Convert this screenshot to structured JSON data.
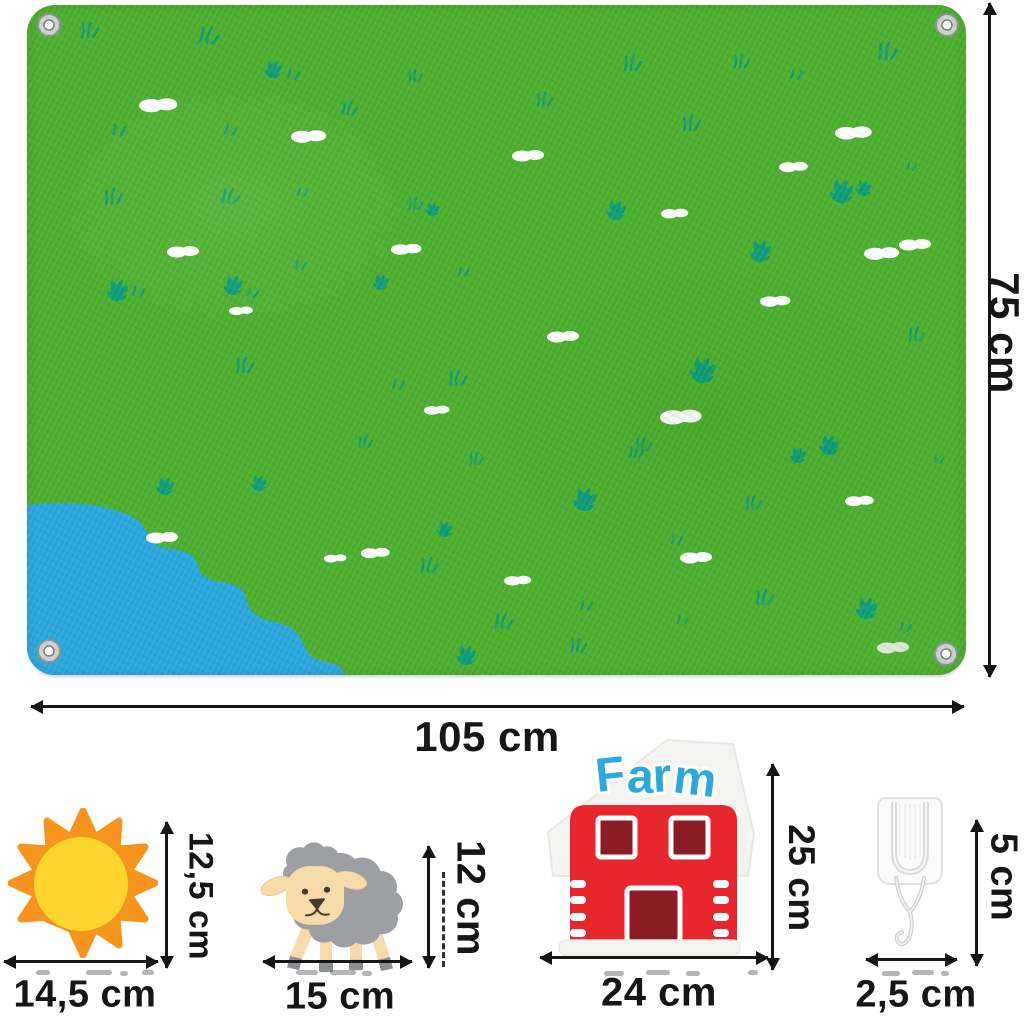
{
  "mat": {
    "width_label": "105 cm",
    "height_label": "75 cm"
  },
  "pieces": {
    "sun": {
      "width_label": "14,5 cm",
      "height_label": "12,5 cm"
    },
    "sheep": {
      "width_label": "15 cm",
      "height_label": "12 cm"
    },
    "barn": {
      "sign_text": "Farm",
      "width_label": "24 cm",
      "height_label": "25 cm"
    },
    "hook": {
      "width_label": "2,5 cm",
      "height_label": "5 cm"
    }
  },
  "colors": {
    "felt_green": "#4daf2f",
    "grass_teal": "#0f9c79",
    "pond_blue": "#2ba7df",
    "cloud_white": "#ffffff",
    "dimension_ink": "#161616",
    "sun_orange": "#f7941e",
    "sun_yellow": "#ffd42d",
    "sheep_gray": "#9d9fa2",
    "sheep_cream": "#f6dba8",
    "barn_red": "#e8262e",
    "barn_maroon": "#8d1b26",
    "farm_blue": "#2aa9e0",
    "hook_white": "#fbfbfb"
  }
}
